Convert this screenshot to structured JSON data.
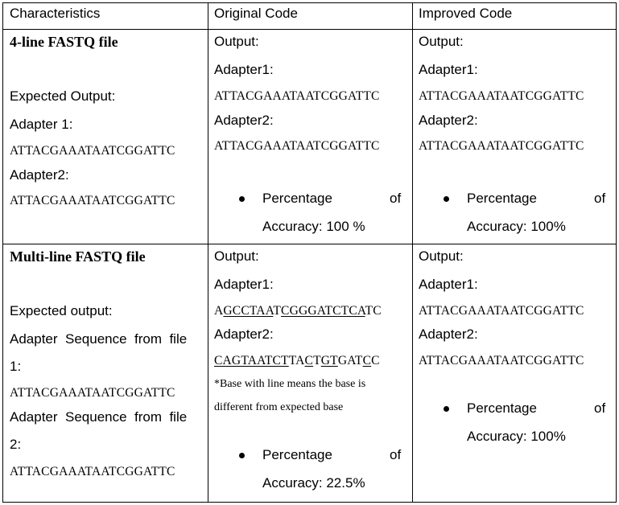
{
  "headers": {
    "characteristics": "Characteristics",
    "original": "Original Code",
    "improved": "Improved Code"
  },
  "row1": {
    "title": "4-line FASTQ file",
    "expected_label": "Expected Output:",
    "adapter1_label": "Adapter 1:",
    "adapter1_seq": "ATTACGAAATAATCGGATTC",
    "adapter2_label": "Adapter2:",
    "adapter2_seq": "ATTACGAAATAATCGGATTC",
    "original": {
      "output_label": "Output:",
      "adapter1_label": "Adapter1:",
      "adapter1_seq": "ATTACGAAATAATCGGATTC",
      "adapter2_label": "Adapter2:",
      "adapter2_seq": "ATTACGAAATAATCGGATTC",
      "pct_label": "Percentage",
      "pct_of": "of",
      "accuracy": "Accuracy: 100 %"
    },
    "improved": {
      "output_label": "Output:",
      "adapter1_label": "Adapter1:",
      "adapter1_seq": "ATTACGAAATAATCGGATTC",
      "adapter2_label": "Adapter2:",
      "adapter2_seq": "ATTACGAAATAATCGGATTC",
      "pct_label": "Percentage",
      "pct_of": "of",
      "accuracy": "Accuracy: 100%"
    }
  },
  "row2": {
    "title": "Multi-line FASTQ file",
    "expected_label": "Expected output:",
    "file1_line1": "Adapter  Sequence  from  file",
    "file1_line2": "1:",
    "file1_seq": "ATTACGAAATAATCGGATTC",
    "file2_line1": "Adapter  Sequence  from  file",
    "file2_line2": "2:",
    "file2_seq": "ATTACGAAATAATCGGATTC",
    "original": {
      "output_label": "Output:",
      "adapter1_label": "Adapter1:",
      "adapter1_seq": [
        {
          "t": "A",
          "u": false
        },
        {
          "t": "GCCTAA",
          "u": true
        },
        {
          "t": "T",
          "u": false
        },
        {
          "t": "CGGGATCTCA",
          "u": true
        },
        {
          "t": "TC",
          "u": false
        }
      ],
      "adapter2_label": "Adapter2:",
      "adapter2_seq": [
        {
          "t": "CAGTAATCT",
          "u": true
        },
        {
          "t": "TA",
          "u": false
        },
        {
          "t": "C",
          "u": true
        },
        {
          "t": "T",
          "u": false
        },
        {
          "t": "GT",
          "u": true
        },
        {
          "t": "GAT",
          "u": false
        },
        {
          "t": "C",
          "u": true
        },
        {
          "t": "C",
          "u": false
        }
      ],
      "note_line1": "*Base with line means the base is",
      "note_line2": "different from expected base",
      "pct_label": "Percentage",
      "pct_of": "of",
      "accuracy": "Accuracy: 22.5%"
    },
    "improved": {
      "output_label": "Output:",
      "adapter1_label": "Adapter1:",
      "adapter1_seq": "ATTACGAAATAATCGGATTC",
      "adapter2_label": "Adapter2:",
      "adapter2_seq": "ATTACGAAATAATCGGATTC",
      "pct_label": "Percentage",
      "pct_of": "of",
      "accuracy": "Accuracy: 100%"
    }
  }
}
